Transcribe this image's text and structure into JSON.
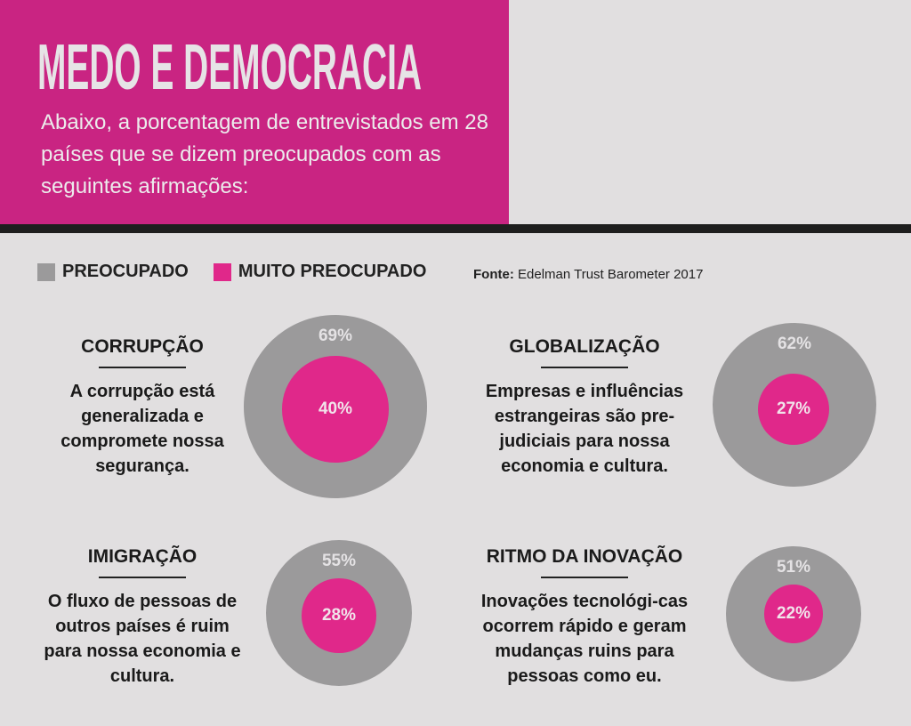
{
  "header": {
    "title": "MEDO E DEMOCRACIA",
    "subtitle": "Abaixo, a porcentagem de entrevistados em 28 países que se dizem preocupados com as seguintes afirmações:"
  },
  "legend": {
    "preocupado": "PREOCUPADO",
    "muito": "MUITO PREOCUPADO"
  },
  "source": {
    "label": "Fonte:",
    "text": "Edelman Trust Barometer 2017"
  },
  "chart_data": {
    "type": "nested-circles",
    "series_names": [
      "Preocupado",
      "Muito preocupado"
    ],
    "colors": {
      "preocupado": "#9b9a9b",
      "muito": "#e0288a"
    },
    "items": [
      {
        "title": "CORRUPÇÃO",
        "text": "A corrupção está generalizada e compromete nossa segurança.",
        "preocupado": 69,
        "muito": 40,
        "preocupado_label": "69%",
        "muito_label": "40%"
      },
      {
        "title": "GLOBALIZAÇÃO",
        "text": "Empresas e influências estrangeiras são pre-judiciais para nossa economia e cultura.",
        "preocupado": 62,
        "muito": 27,
        "preocupado_label": "62%",
        "muito_label": "27%"
      },
      {
        "title": "IMIGRAÇÃO",
        "text": "O fluxo de pessoas de outros países é ruim para nossa economia e cultura.",
        "preocupado": 55,
        "muito": 28,
        "preocupado_label": "55%",
        "muito_label": "28%"
      },
      {
        "title": "RITMO DA INOVAÇÃO",
        "text": "Inovações tecnológi-cas ocorrem rápido e geram mudanças ruins para pessoas como eu.",
        "preocupado": 51,
        "muito": 22,
        "preocupado_label": "51%",
        "muito_label": "22%"
      }
    ]
  }
}
